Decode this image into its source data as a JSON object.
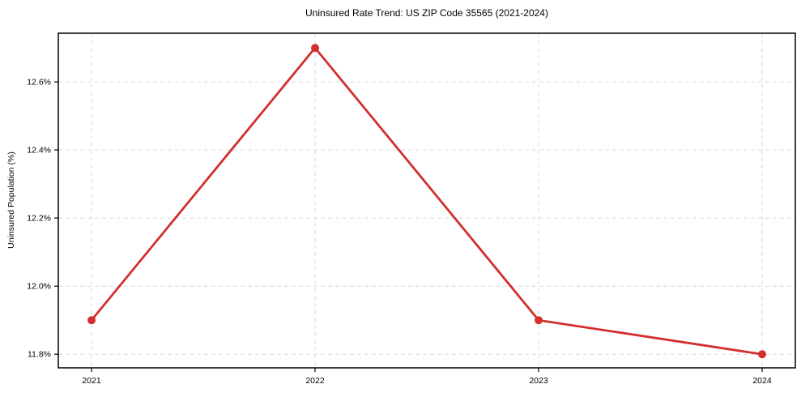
{
  "chart_data": {
    "type": "line",
    "title": "Uninsured Rate Trend: US ZIP Code 35565 (2021-2024)",
    "xlabel": "",
    "ylabel": "Uninsured Population (%)",
    "categories": [
      "2021",
      "2022",
      "2023",
      "2024"
    ],
    "series": [
      {
        "name": "Uninsured rate",
        "values": [
          11.9,
          12.7,
          11.9,
          11.8
        ],
        "color": "#d32f2f"
      }
    ],
    "yticks": [
      11.8,
      12.0,
      12.2,
      12.4,
      12.6
    ],
    "ytick_labels": [
      "11.8%",
      "12.0%",
      "12.2%",
      "12.4%",
      "12.6%"
    ],
    "ylim": [
      11.76,
      12.743
    ],
    "grid": true,
    "grid_style": "dashed",
    "grid_color": "#d9d9d9",
    "axis_color": "#000000",
    "background": "#ffffff",
    "legend_position": "none",
    "marker": "circle"
  }
}
